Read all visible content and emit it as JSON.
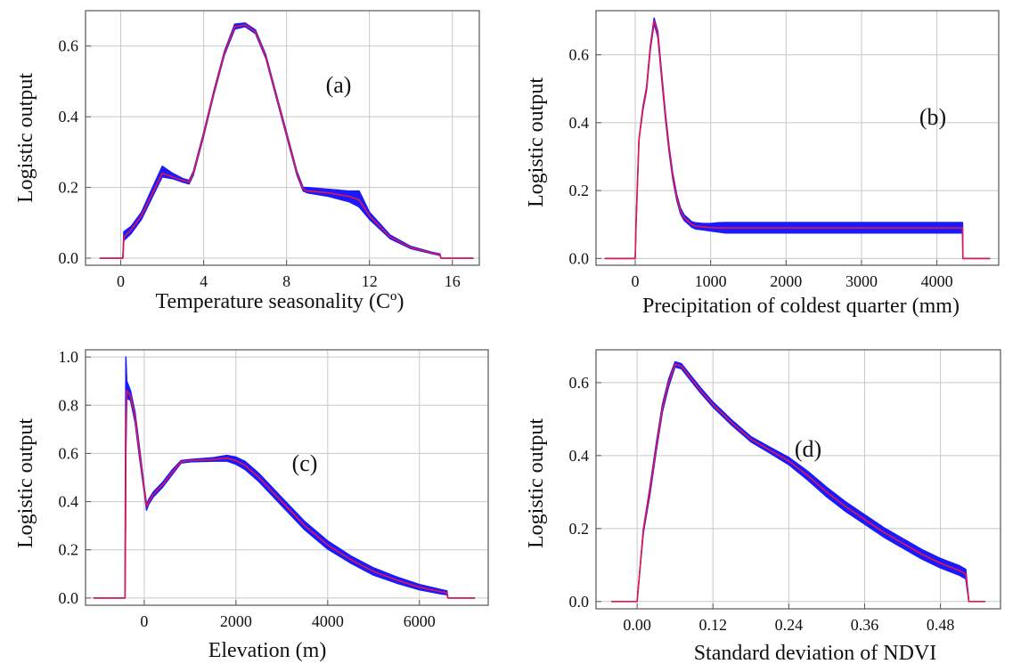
{
  "colors": {
    "band": "#1a1aff",
    "mean": "#e3174a",
    "grid": "#c8c8c8",
    "axis": "#555555"
  },
  "chart_data": [
    {
      "type": "line",
      "panel_label": "(a)",
      "xlabel": "Temperature seasonality (Cº)",
      "ylabel": "Logistic output",
      "xlim": [
        -1.7,
        17.3
      ],
      "ylim": [
        -0.02,
        0.7
      ],
      "xticks": [
        0,
        4,
        8,
        12,
        16
      ],
      "yticks": [
        0.0,
        0.2,
        0.4,
        0.6
      ],
      "ytick_decimals": 1,
      "grid": true,
      "series": [
        {
          "role": "mean",
          "x": [
            -1.0,
            0.1,
            0.15,
            0.5,
            1.0,
            1.5,
            2.0,
            2.5,
            3.0,
            3.3,
            3.5,
            4.0,
            4.5,
            5.0,
            5.5,
            6.0,
            6.5,
            7.0,
            7.5,
            8.0,
            8.5,
            8.8,
            9.0,
            10.0,
            11.0,
            11.5,
            12.0,
            13.0,
            14.0,
            15.0,
            15.4,
            15.45,
            17.0
          ],
          "y": [
            0.0,
            0.0,
            0.06,
            0.08,
            0.12,
            0.18,
            0.24,
            0.23,
            0.22,
            0.215,
            0.24,
            0.35,
            0.47,
            0.58,
            0.655,
            0.66,
            0.64,
            0.57,
            0.46,
            0.35,
            0.24,
            0.195,
            0.19,
            0.185,
            0.175,
            0.165,
            0.12,
            0.06,
            0.03,
            0.015,
            0.01,
            0.0,
            0.0
          ]
        },
        {
          "role": "upper",
          "x": [
            -1.0,
            0.1,
            0.15,
            0.5,
            1.0,
            1.5,
            2.0,
            2.5,
            3.0,
            3.3,
            3.5,
            4.0,
            4.5,
            5.0,
            5.5,
            6.0,
            6.5,
            7.0,
            7.5,
            8.0,
            8.5,
            8.8,
            9.0,
            10.0,
            11.0,
            11.5,
            12.0,
            13.0,
            14.0,
            15.0,
            15.4,
            15.45,
            17.0
          ],
          "y": [
            0.0,
            0.0,
            0.075,
            0.09,
            0.13,
            0.195,
            0.26,
            0.24,
            0.225,
            0.22,
            0.245,
            0.355,
            0.475,
            0.585,
            0.662,
            0.665,
            0.645,
            0.575,
            0.465,
            0.355,
            0.245,
            0.2,
            0.2,
            0.195,
            0.19,
            0.19,
            0.13,
            0.065,
            0.033,
            0.017,
            0.012,
            0.0,
            0.0
          ]
        },
        {
          "role": "lower",
          "x": [
            -1.0,
            0.1,
            0.15,
            0.5,
            1.0,
            1.5,
            2.0,
            2.5,
            3.0,
            3.3,
            3.5,
            4.0,
            4.5,
            5.0,
            5.5,
            6.0,
            6.5,
            7.0,
            7.5,
            8.0,
            8.5,
            8.8,
            9.0,
            10.0,
            11.0,
            11.5,
            12.0,
            13.0,
            14.0,
            15.0,
            15.4,
            15.45,
            17.0
          ],
          "y": [
            0.0,
            0.0,
            0.05,
            0.07,
            0.11,
            0.17,
            0.23,
            0.225,
            0.215,
            0.21,
            0.235,
            0.345,
            0.465,
            0.575,
            0.648,
            0.655,
            0.635,
            0.565,
            0.455,
            0.345,
            0.235,
            0.19,
            0.185,
            0.175,
            0.16,
            0.145,
            0.11,
            0.055,
            0.027,
            0.013,
            0.008,
            0.0,
            0.0
          ]
        }
      ]
    },
    {
      "type": "line",
      "panel_label": "(b)",
      "xlabel": "Precipitation of coldest quarter (mm)",
      "ylabel": "Logistic output",
      "xlim": [
        -520,
        4820
      ],
      "ylim": [
        -0.02,
        0.73
      ],
      "xticks": [
        0,
        1000,
        2000,
        3000,
        4000
      ],
      "yticks": [
        0.0,
        0.2,
        0.4,
        0.6
      ],
      "ytick_decimals": 1,
      "grid": true,
      "series": [
        {
          "role": "mean",
          "x": [
            -400,
            0,
            10,
            50,
            100,
            150,
            200,
            250,
            300,
            350,
            400,
            450,
            500,
            550,
            600,
            650,
            700,
            750,
            800,
            900,
            1000,
            1100,
            1200,
            2000,
            3000,
            4000,
            4340,
            4345,
            4700
          ],
          "y": [
            0.0,
            0.0,
            0.1,
            0.35,
            0.44,
            0.5,
            0.62,
            0.7,
            0.66,
            0.54,
            0.42,
            0.32,
            0.24,
            0.18,
            0.14,
            0.12,
            0.11,
            0.1,
            0.095,
            0.093,
            0.091,
            0.09,
            0.09,
            0.09,
            0.09,
            0.09,
            0.09,
            0.0,
            0.0
          ]
        },
        {
          "role": "upper",
          "x": [
            -400,
            0,
            10,
            50,
            100,
            150,
            200,
            250,
            300,
            350,
            400,
            450,
            500,
            550,
            600,
            650,
            700,
            750,
            800,
            900,
            1000,
            1100,
            1200,
            2000,
            3000,
            4000,
            4340,
            4345,
            4700
          ],
          "y": [
            0.0,
            0.0,
            0.1,
            0.35,
            0.445,
            0.505,
            0.625,
            0.708,
            0.668,
            0.548,
            0.428,
            0.328,
            0.248,
            0.188,
            0.148,
            0.128,
            0.118,
            0.108,
            0.105,
            0.103,
            0.103,
            0.105,
            0.106,
            0.106,
            0.106,
            0.106,
            0.106,
            0.0,
            0.0
          ]
        },
        {
          "role": "lower",
          "x": [
            -400,
            0,
            10,
            50,
            100,
            150,
            200,
            250,
            300,
            350,
            400,
            450,
            500,
            550,
            600,
            650,
            700,
            750,
            800,
            900,
            1000,
            1100,
            1200,
            2000,
            3000,
            4000,
            4340,
            4345,
            4700
          ],
          "y": [
            0.0,
            0.0,
            0.1,
            0.35,
            0.435,
            0.495,
            0.615,
            0.692,
            0.652,
            0.532,
            0.412,
            0.312,
            0.232,
            0.172,
            0.132,
            0.112,
            0.102,
            0.092,
            0.087,
            0.084,
            0.081,
            0.078,
            0.075,
            0.075,
            0.075,
            0.075,
            0.075,
            0.0,
            0.0
          ]
        }
      ]
    },
    {
      "type": "line",
      "panel_label": "(c)",
      "xlabel": "Elevation (m)",
      "ylabel": "Logistic output",
      "xlim": [
        -1280,
        7500
      ],
      "ylim": [
        -0.03,
        1.03
      ],
      "xticks": [
        0,
        2000,
        4000,
        6000
      ],
      "yticks": [
        0.0,
        0.2,
        0.4,
        0.6,
        0.8,
        1.0
      ],
      "ytick_decimals": 1,
      "grid": true,
      "series": [
        {
          "role": "mean",
          "x": [
            -1100,
            -420,
            -410,
            -400,
            -380,
            -300,
            -200,
            -100,
            0,
            50,
            100,
            200,
            400,
            600,
            800,
            1000,
            1500,
            1800,
            2000,
            2200,
            2500,
            3000,
            3500,
            4000,
            4500,
            5000,
            5500,
            6000,
            6500,
            6600,
            6620,
            7200
          ],
          "y": [
            0.0,
            0.0,
            0.3,
            0.7,
            0.86,
            0.84,
            0.75,
            0.6,
            0.45,
            0.38,
            0.4,
            0.43,
            0.47,
            0.52,
            0.565,
            0.57,
            0.575,
            0.58,
            0.57,
            0.55,
            0.5,
            0.4,
            0.3,
            0.22,
            0.16,
            0.11,
            0.075,
            0.045,
            0.025,
            0.022,
            0.0,
            0.0
          ]
        },
        {
          "role": "upper",
          "x": [
            -1100,
            -420,
            -410,
            -400,
            -380,
            -300,
            -200,
            -100,
            0,
            50,
            100,
            200,
            400,
            600,
            800,
            1000,
            1500,
            1800,
            2000,
            2200,
            2500,
            3000,
            3500,
            4000,
            4500,
            5000,
            5500,
            6000,
            6500,
            6600,
            6620,
            7200
          ],
          "y": [
            0.0,
            0.0,
            0.6,
            1.0,
            0.9,
            0.86,
            0.77,
            0.62,
            0.46,
            0.39,
            0.41,
            0.44,
            0.48,
            0.53,
            0.57,
            0.575,
            0.582,
            0.592,
            0.585,
            0.567,
            0.517,
            0.417,
            0.317,
            0.237,
            0.175,
            0.125,
            0.088,
            0.056,
            0.034,
            0.03,
            0.0,
            0.0
          ]
        },
        {
          "role": "lower",
          "x": [
            -1100,
            -420,
            -410,
            -400,
            -380,
            -300,
            -200,
            -100,
            0,
            50,
            100,
            200,
            400,
            600,
            800,
            1000,
            1500,
            1800,
            2000,
            2200,
            2500,
            3000,
            3500,
            4000,
            4500,
            5000,
            5500,
            6000,
            6500,
            6600,
            6620,
            7200
          ],
          "y": [
            0.0,
            0.0,
            0.2,
            0.6,
            0.83,
            0.82,
            0.73,
            0.58,
            0.44,
            0.365,
            0.39,
            0.42,
            0.46,
            0.51,
            0.56,
            0.565,
            0.568,
            0.568,
            0.555,
            0.533,
            0.483,
            0.383,
            0.283,
            0.203,
            0.145,
            0.095,
            0.062,
            0.034,
            0.016,
            0.014,
            0.0,
            0.0
          ]
        }
      ]
    },
    {
      "type": "line",
      "panel_label": "(d)",
      "xlabel": "Standard deviation of NDVI",
      "ylabel": "Logistic output",
      "xlim": [
        -0.065,
        0.575
      ],
      "ylim": [
        -0.02,
        0.69
      ],
      "xticks": [
        0.0,
        0.12,
        0.24,
        0.36,
        0.48
      ],
      "yticks": [
        0.0,
        0.2,
        0.4,
        0.6
      ],
      "ytick_decimals": 1,
      "grid": true,
      "series": [
        {
          "role": "mean",
          "x": [
            -0.04,
            0.0,
            0.005,
            0.01,
            0.02,
            0.03,
            0.04,
            0.05,
            0.06,
            0.07,
            0.1,
            0.12,
            0.15,
            0.18,
            0.21,
            0.24,
            0.27,
            0.3,
            0.33,
            0.36,
            0.39,
            0.42,
            0.45,
            0.48,
            0.51,
            0.52,
            0.525,
            0.55
          ],
          "y": [
            0.0,
            0.0,
            0.1,
            0.2,
            0.3,
            0.42,
            0.53,
            0.6,
            0.65,
            0.645,
            0.58,
            0.54,
            0.49,
            0.445,
            0.415,
            0.385,
            0.345,
            0.3,
            0.26,
            0.225,
            0.19,
            0.16,
            0.13,
            0.105,
            0.085,
            0.075,
            0.0,
            0.0
          ]
        },
        {
          "role": "upper",
          "x": [
            -0.04,
            0.0,
            0.005,
            0.01,
            0.02,
            0.03,
            0.04,
            0.05,
            0.06,
            0.07,
            0.1,
            0.12,
            0.15,
            0.18,
            0.21,
            0.24,
            0.27,
            0.3,
            0.33,
            0.36,
            0.39,
            0.42,
            0.45,
            0.48,
            0.51,
            0.52,
            0.525,
            0.55
          ],
          "y": [
            0.0,
            0.0,
            0.1,
            0.2,
            0.31,
            0.43,
            0.54,
            0.61,
            0.657,
            0.652,
            0.587,
            0.547,
            0.497,
            0.452,
            0.423,
            0.395,
            0.357,
            0.313,
            0.273,
            0.238,
            0.203,
            0.173,
            0.143,
            0.118,
            0.098,
            0.088,
            0.0,
            0.0
          ]
        },
        {
          "role": "lower",
          "x": [
            -0.04,
            0.0,
            0.005,
            0.01,
            0.02,
            0.03,
            0.04,
            0.05,
            0.06,
            0.07,
            0.1,
            0.12,
            0.15,
            0.18,
            0.21,
            0.24,
            0.27,
            0.3,
            0.33,
            0.36,
            0.39,
            0.42,
            0.45,
            0.48,
            0.51,
            0.52,
            0.525,
            0.55
          ],
          "y": [
            0.0,
            0.0,
            0.1,
            0.19,
            0.29,
            0.41,
            0.52,
            0.59,
            0.643,
            0.638,
            0.573,
            0.533,
            0.483,
            0.438,
            0.407,
            0.375,
            0.333,
            0.287,
            0.247,
            0.212,
            0.177,
            0.147,
            0.117,
            0.092,
            0.072,
            0.062,
            0.0,
            0.0
          ]
        }
      ]
    }
  ]
}
